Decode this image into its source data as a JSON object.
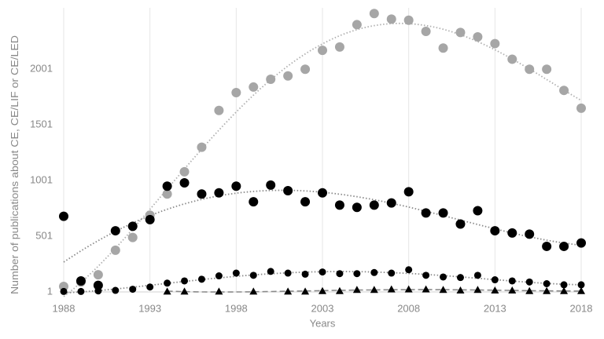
{
  "chart_data": {
    "type": "scatter",
    "x_label": "Years",
    "y_label": "Number of publications about CE, CE/LIF or CE/LED",
    "x": [
      1988,
      1989,
      1990,
      1991,
      1992,
      1993,
      1994,
      1995,
      1996,
      1997,
      1998,
      1999,
      2000,
      2001,
      2002,
      2003,
      2004,
      2005,
      2006,
      2007,
      2008,
      2009,
      2010,
      2011,
      2012,
      2013,
      2014,
      2015,
      2016,
      2017,
      2018
    ],
    "series": [
      {
        "color": "#a6a6a6",
        "marker": "circle",
        "trend": "dotted",
        "values": [
          50,
          90,
          155,
          375,
          490,
          690,
          880,
          1080,
          1300,
          1630,
          1790,
          1840,
          1910,
          1940,
          2000,
          2170,
          2200,
          2400,
          2500,
          2450,
          2440,
          2340,
          2190,
          2330,
          2290,
          2230,
          2090,
          2000,
          2000,
          1810,
          1650
        ]
      },
      {
        "color": "#000000",
        "marker": "circle",
        "trend": "dotted",
        "values": [
          680,
          100,
          60,
          550,
          590,
          650,
          950,
          980,
          880,
          890,
          950,
          810,
          960,
          910,
          810,
          890,
          780,
          760,
          780,
          800,
          900,
          710,
          710,
          610,
          730,
          550,
          530,
          520,
          410,
          410,
          440
        ]
      },
      {
        "color": "#000000",
        "marker": "dot",
        "trend": "dotted",
        "values": [
          5,
          5,
          10,
          15,
          25,
          45,
          80,
          100,
          115,
          145,
          170,
          150,
          185,
          170,
          160,
          180,
          165,
          165,
          175,
          170,
          200,
          150,
          135,
          130,
          150,
          110,
          100,
          90,
          75,
          65,
          65
        ]
      },
      {
        "color": "#000000",
        "marker": "triangle",
        "trend": "dashed",
        "values": [
          null,
          null,
          null,
          null,
          null,
          null,
          5,
          5,
          null,
          5,
          null,
          5,
          null,
          5,
          5,
          10,
          10,
          20,
          20,
          25,
          25,
          25,
          20,
          15,
          20,
          15,
          15,
          10,
          10,
          10,
          10
        ]
      }
    ],
    "xlim": [
      1988,
      2018
    ],
    "xticks": [
      1988,
      1993,
      1998,
      2003,
      2008,
      2013,
      2018
    ],
    "ylim": [
      1,
      2551
    ],
    "yticks": [
      1,
      501,
      1001,
      1501,
      2001
    ],
    "grid": true
  }
}
